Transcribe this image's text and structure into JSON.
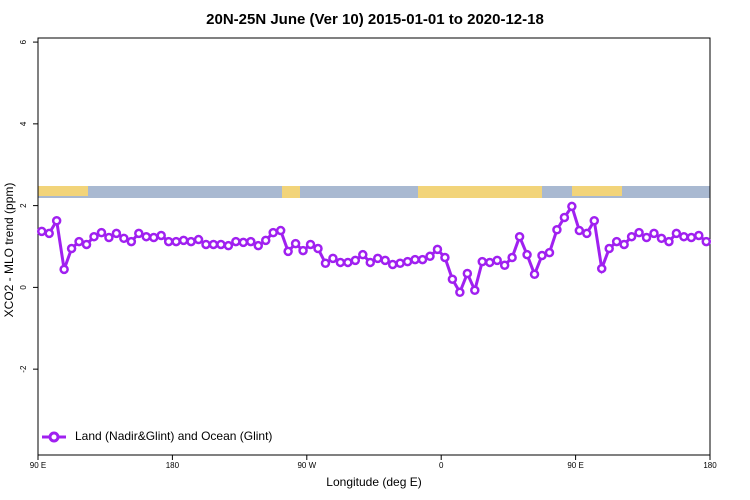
{
  "chart_data": {
    "type": "line",
    "title": "20N-25N June (Ver 10)   2015-01-01 to 2020-12-18",
    "xlabel": "Longitude (deg E)",
    "ylabel": "XCO2 - MLO trend (ppm)",
    "xlim": [
      90,
      540
    ],
    "ylim": [
      -4.1,
      6.1
    ],
    "xticks": [
      {
        "value": 90,
        "label": "90 E"
      },
      180,
      {
        "value": 270,
        "label": "90 W"
      },
      {
        "value": 360,
        "label": "0"
      },
      {
        "value": 450,
        "label": "90 E"
      },
      {
        "value": 540,
        "label": "180"
      }
    ],
    "yticks": [
      -2,
      0,
      2,
      4,
      6
    ],
    "legend": "bottom-left",
    "x": [
      92.5,
      97.5,
      102.5,
      107.5,
      112.5,
      117.5,
      122.5,
      127.5,
      132.5,
      137.5,
      142.5,
      147.5,
      152.5,
      157.5,
      162.5,
      167.5,
      172.5,
      177.5,
      182.5,
      187.5,
      192.5,
      197.5,
      202.5,
      207.5,
      212.5,
      217.5,
      222.5,
      227.5,
      232.5,
      237.5,
      242.5,
      247.5,
      252.5,
      257.5,
      262.5,
      267.5,
      272.5,
      277.5,
      282.5,
      287.5,
      292.5,
      297.5,
      302.5,
      307.5,
      312.5,
      317.5,
      322.5,
      327.5,
      332.5,
      337.5,
      342.5,
      347.5,
      352.5,
      357.5,
      362.5,
      367.5,
      372.5,
      377.5,
      382.5,
      387.5,
      392.5,
      397.5,
      402.5,
      407.5,
      412.5,
      417.5,
      422.5,
      427.5,
      432.5,
      437.5,
      442.5,
      447.5,
      452.5,
      457.5,
      462.5,
      467.5,
      472.5,
      477.5,
      482.5,
      487.5,
      492.5,
      497.5,
      502.5,
      507.5,
      512.5,
      517.5,
      522.5,
      527.5,
      532.5,
      537.5
    ],
    "series": [
      {
        "name": "Land (Nadir&Glint) and Ocean (Glint)",
        "color": "#a020f0",
        "values": [
          1.37,
          1.32,
          1.63,
          0.44,
          0.95,
          1.12,
          1.05,
          1.24,
          1.34,
          1.22,
          1.32,
          1.2,
          1.12,
          1.32,
          1.24,
          1.22,
          1.27,
          1.12,
          1.12,
          1.15,
          1.12,
          1.17,
          1.05,
          1.05,
          1.05,
          1.02,
          1.12,
          1.1,
          1.12,
          1.02,
          1.15,
          1.34,
          1.39,
          0.88,
          1.07,
          0.9,
          1.05,
          0.95,
          0.59,
          0.71,
          0.61,
          0.61,
          0.66,
          0.8,
          0.61,
          0.71,
          0.66,
          0.56,
          0.59,
          0.63,
          0.68,
          0.68,
          0.76,
          0.93,
          0.73,
          0.2,
          -0.12,
          0.34,
          -0.07,
          0.63,
          0.61,
          0.66,
          0.54,
          0.73,
          1.24,
          0.8,
          0.32,
          0.78,
          0.85,
          1.41,
          1.71,
          1.98,
          1.39,
          1.32,
          1.63,
          0.46,
          0.95,
          1.12,
          1.05,
          1.24,
          1.34,
          1.22,
          1.32,
          1.2,
          1.12,
          1.32,
          1.24,
          1.22,
          1.27,
          1.12
        ]
      }
    ]
  }
}
